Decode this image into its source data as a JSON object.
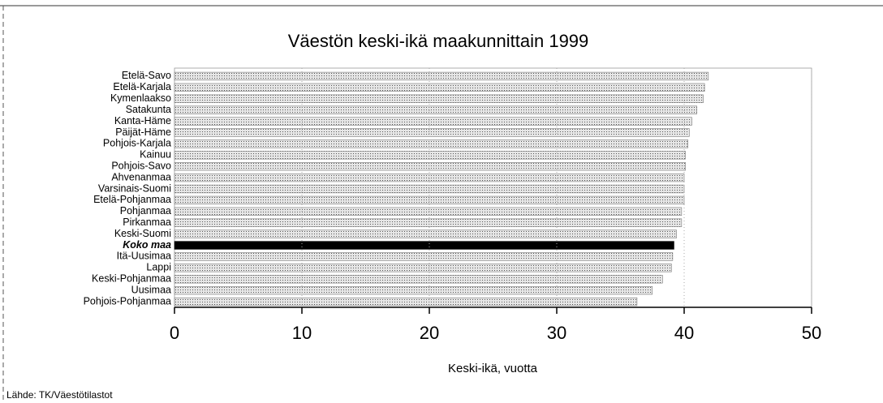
{
  "chart_data": {
    "type": "bar",
    "orientation": "horizontal",
    "title": "Väestön keski-ikä maakunnittain 1999",
    "x_label": "Keski-ikä, vuotta",
    "source": "Lähde: TK/Väestötilastot",
    "categories": [
      "Etelä-Savo",
      "Etelä-Karjala",
      "Kymenlaakso",
      "Satakunta",
      "Kanta-Häme",
      "Päijät-Häme",
      "Pohjois-Karjala",
      "Kainuu",
      "Pohjois-Savo",
      "Ahvenanmaa",
      "Varsinais-Suomi",
      "Etelä-Pohjanmaa",
      "Pohjanmaa",
      "Pirkanmaa",
      "Keski-Suomi",
      "Koko maa",
      "Itä-Uusimaa",
      "Lappi",
      "Keski-Pohjanmaa",
      "Uusimaa",
      "Pohjois-Pohjanmaa"
    ],
    "values": [
      41.9,
      41.6,
      41.5,
      41.0,
      40.6,
      40.4,
      40.3,
      40.1,
      40.1,
      40.0,
      40.0,
      40.0,
      39.8,
      39.8,
      39.4,
      39.2,
      39.1,
      39.0,
      38.3,
      37.5,
      36.3
    ],
    "colors": [
      "#c4c4c4",
      "#c4c4c4",
      "#c4c4c4",
      "#c4c4c4",
      "#c4c4c4",
      "#c4c4c4",
      "#c4c4c4",
      "#c4c4c4",
      "#c4c4c4",
      "#c4c4c4",
      "#c4c4c4",
      "#c4c4c4",
      "#c4c4c4",
      "#c4c4c4",
      "#c4c4c4",
      "#000000",
      "#c4c4c4",
      "#c4c4c4",
      "#c4c4c4",
      "#c4c4c4",
      "#c4c4c4"
    ],
    "xlim": [
      0,
      50
    ],
    "xticks": [
      0,
      10,
      20,
      30,
      40,
      50
    ]
  }
}
